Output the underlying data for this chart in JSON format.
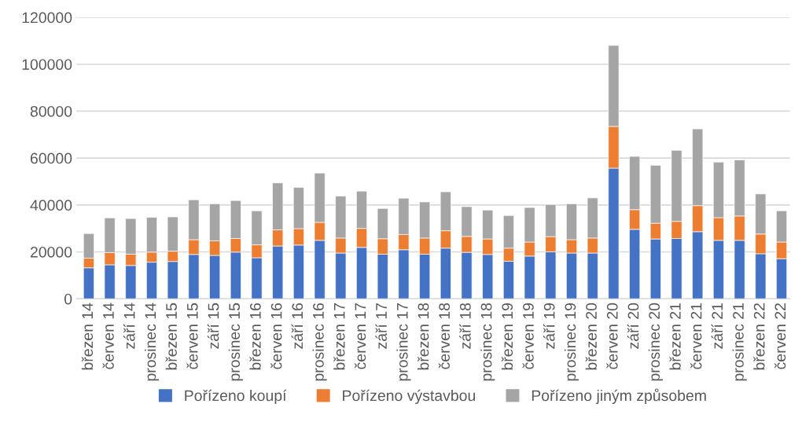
{
  "chart_data": {
    "type": "bar",
    "stacked": true,
    "categories": [
      "březen 14",
      "červen 14",
      "září 14",
      "prosinec 14",
      "březen 15",
      "červen 15",
      "září 15",
      "prosinec 15",
      "březen 16",
      "červen 16",
      "září 16",
      "prosinec 16",
      "březen 17",
      "červen 17",
      "září 17",
      "prosinec 17",
      "březen 18",
      "červen 18",
      "září 18",
      "prosinec 18",
      "březen 19",
      "červen 19",
      "září 19",
      "prosinec 19",
      "březen 20",
      "červen 20",
      "září 20",
      "prosinec 20",
      "březen 21",
      "červen 21",
      "září 21",
      "prosinec 21",
      "březen 22",
      "červen 22"
    ],
    "series": [
      {
        "name": "Pořízeno koupí",
        "color": "#4472c4",
        "values": [
          13200,
          14500,
          14200,
          15600,
          15900,
          18900,
          18500,
          19900,
          17500,
          22500,
          22900,
          24900,
          19500,
          21900,
          19000,
          20900,
          19000,
          21600,
          19800,
          18900,
          16000,
          18200,
          20000,
          19500,
          19500,
          55700,
          29600,
          25500,
          25700,
          28600,
          24900,
          24900,
          19200,
          17100
        ]
      },
      {
        "name": "Pořízeno výstavbou",
        "color": "#ed7d31",
        "values": [
          4100,
          5200,
          4800,
          4300,
          4400,
          6300,
          6200,
          5800,
          5500,
          6900,
          7000,
          7700,
          6400,
          8100,
          6600,
          6500,
          6900,
          7400,
          6800,
          6600,
          5600,
          6000,
          6500,
          5700,
          6400,
          17800,
          8400,
          6700,
          7300,
          11100,
          9700,
          10400,
          8400,
          7100
        ]
      },
      {
        "name": "Pořízeno jiným způsobem",
        "color": "#a5a5a5",
        "values": [
          10500,
          14800,
          15200,
          14800,
          14600,
          17000,
          15800,
          16200,
          14500,
          20000,
          17600,
          21000,
          17900,
          15900,
          12900,
          15500,
          15400,
          16600,
          12700,
          12300,
          13900,
          14700,
          13700,
          15300,
          17100,
          34500,
          22700,
          24700,
          30300,
          32700,
          23700,
          23900,
          17100,
          13300
        ]
      }
    ],
    "ylim": [
      0,
      120000
    ],
    "yticks": [
      0,
      20000,
      40000,
      60000,
      80000,
      100000,
      120000
    ],
    "grid": "y",
    "legend": "bottom"
  }
}
